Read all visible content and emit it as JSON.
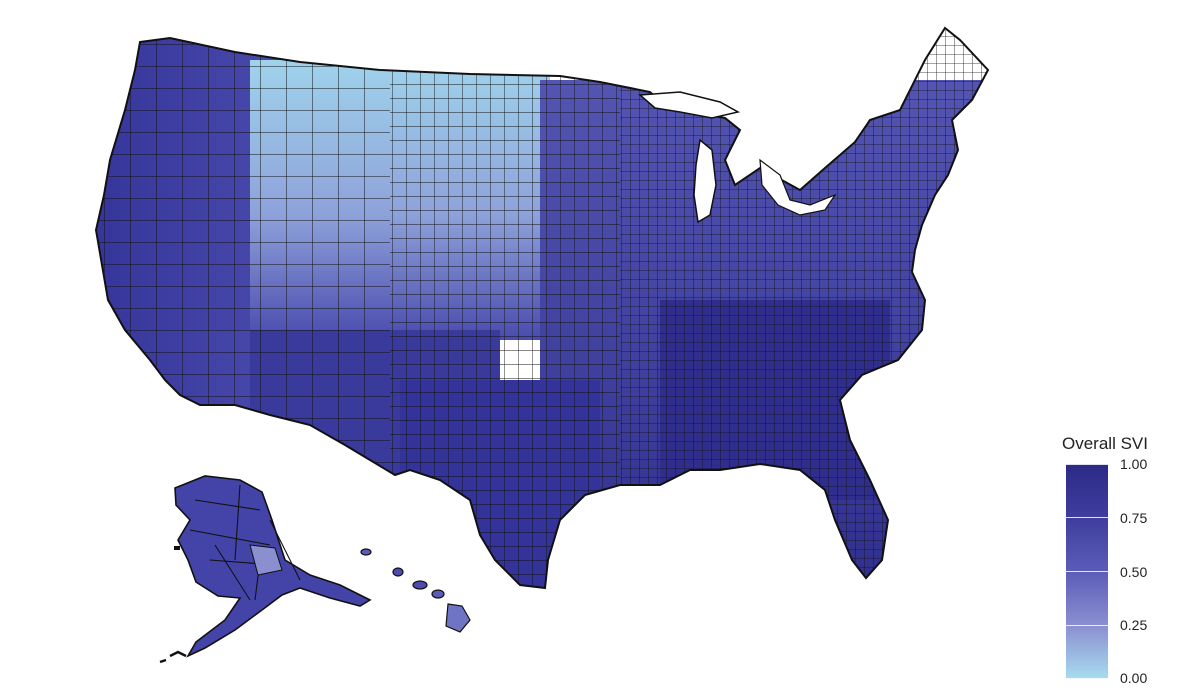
{
  "legend": {
    "title": "Overall SVI",
    "ticks": [
      "1.00",
      "0.75",
      "0.50",
      "0.25",
      "0.00"
    ],
    "tick_values": [
      1.0,
      0.75,
      0.5,
      0.25,
      0.0
    ]
  },
  "colors": {
    "high": "#2b2a86",
    "mid_high": "#3f3ea0",
    "mid": "#5b5cb8",
    "mid_low": "#8a8fd0",
    "low": "#a8dcef",
    "border": "#111111",
    "background": "#ffffff"
  }
}
